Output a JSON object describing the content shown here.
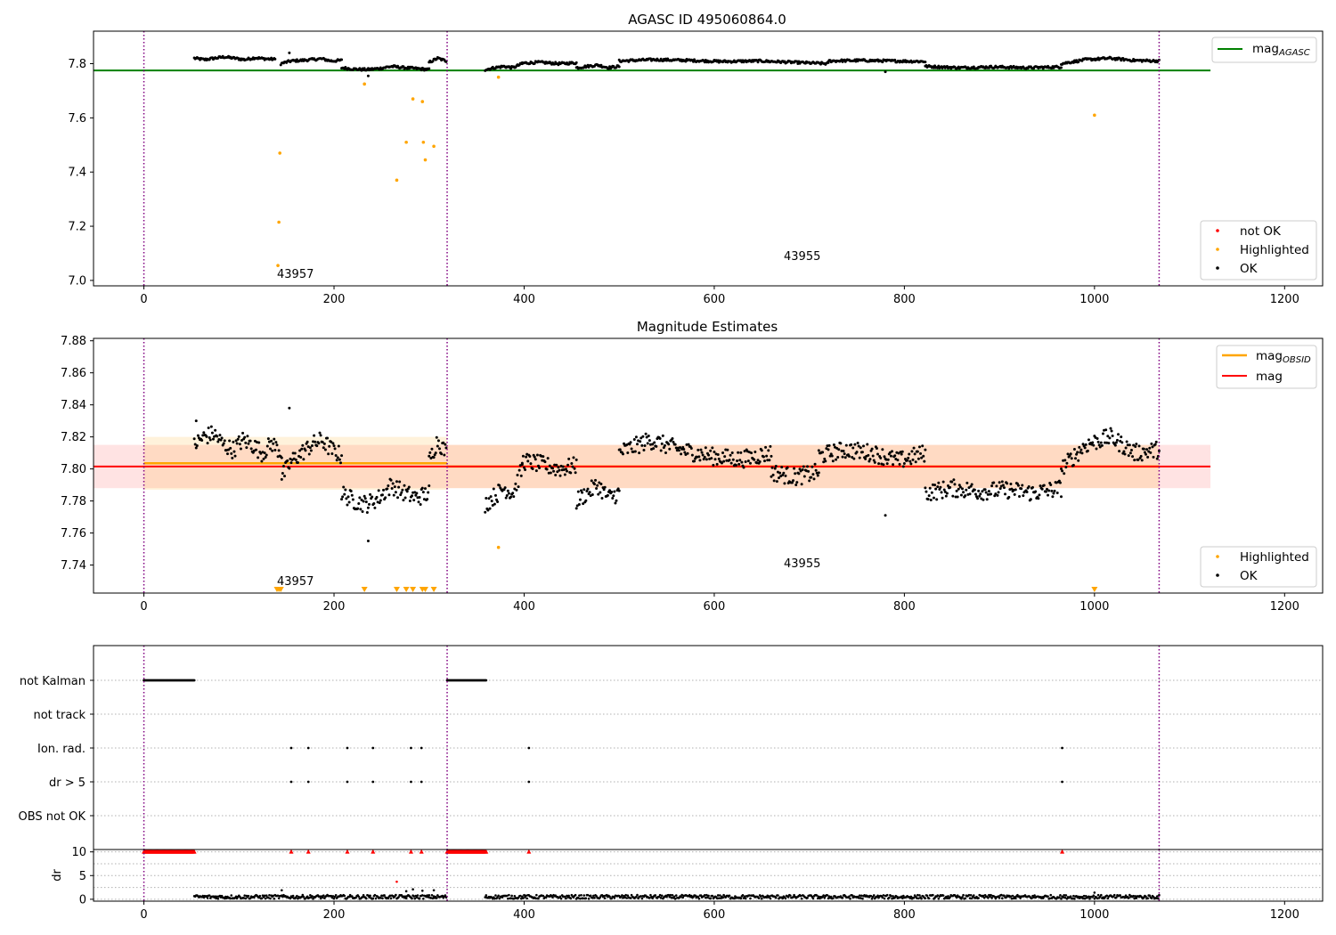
{
  "chart_data": [
    {
      "type": "scatter",
      "title": "AGASC ID 495060864.0",
      "xlim": [
        -53,
        1240
      ],
      "ylim": [
        6.98,
        7.92
      ],
      "xticks": [
        "0",
        "200",
        "400",
        "600",
        "800",
        "1000",
        "1200"
      ],
      "yticks": [
        "7.0",
        "7.2",
        "7.4",
        "7.6",
        "7.8"
      ],
      "reference_line": {
        "label": "mag",
        "subscript": "AGASC",
        "value": 7.775,
        "x_range": [
          -53,
          1122
        ],
        "color": "#008000"
      },
      "obsid_boundaries": [
        0,
        319,
        1068
      ],
      "obsid_labels": [
        {
          "text": "43957",
          "x": 140,
          "y": 7.01
        },
        {
          "text": "43955",
          "x": 672,
          "y": 7.075
        }
      ],
      "legend": {
        "position": "lower-right",
        "entries": [
          "not OK",
          "Highlighted",
          "OK"
        ]
      },
      "colors": {
        "not_ok": "#ff0000",
        "highlighted": "#ffa500",
        "ok": "#000000"
      },
      "series": [
        {
          "name": "Highlighted",
          "points": [
            [
              141,
              7.055
            ],
            [
              142,
              7.215
            ],
            [
              143,
              7.47
            ],
            [
              232,
              7.725
            ],
            [
              266,
              7.37
            ],
            [
              276,
              7.51
            ],
            [
              283,
              7.67
            ],
            [
              293,
              7.66
            ],
            [
              294,
              7.51
            ],
            [
              296,
              7.445
            ],
            [
              305,
              7.495
            ],
            [
              373,
              7.75
            ],
            [
              1000,
              7.61
            ]
          ]
        },
        {
          "name": "OK",
          "segments": [
            {
              "x_start": 53,
              "x_end": 138,
              "levels": [
                7.82,
                7.815,
                7.82,
                7.825,
                7.82,
                7.815,
                7.822,
                7.818,
                7.816
              ]
            },
            {
              "x_start": 144,
              "x_end": 208,
              "levels": [
                7.8,
                7.81,
                7.812,
                7.815,
                7.818,
                7.81,
                7.812
              ]
            },
            {
              "x_start": 208,
              "x_end": 300,
              "levels": [
                7.785,
                7.78,
                7.778,
                7.782,
                7.79,
                7.785,
                7.782,
                7.778
              ]
            },
            {
              "x_start": 300,
              "x_end": 318,
              "levels": [
                7.805,
                7.82,
                7.81
              ]
            },
            {
              "x_start": 359,
              "x_end": 398,
              "levels": [
                7.778,
                7.785,
                7.79,
                7.785,
                7.8
              ]
            },
            {
              "x_start": 398,
              "x_end": 455,
              "levels": [
                7.802,
                7.805,
                7.8,
                7.803
              ]
            },
            {
              "x_start": 455,
              "x_end": 500,
              "levels": [
                7.785,
                7.79,
                7.795,
                7.785,
                7.79
              ]
            },
            {
              "x_start": 500,
              "x_end": 720,
              "levels": [
                7.81,
                7.815,
                7.812,
                7.808,
                7.81,
                7.805,
                7.8
              ]
            },
            {
              "x_start": 720,
              "x_end": 822,
              "levels": [
                7.81,
                7.812,
                7.81,
                7.808
              ]
            },
            {
              "x_start": 822,
              "x_end": 965,
              "levels": [
                7.79,
                7.785,
                7.788,
                7.785,
                7.788
              ]
            },
            {
              "x_start": 965,
              "x_end": 1068,
              "levels": [
                7.8,
                7.815,
                7.82,
                7.812,
                7.81
              ]
            }
          ],
          "outliers": [
            [
              153,
              7.84
            ],
            [
              236,
              7.755
            ],
            [
              780,
              7.77
            ]
          ]
        }
      ]
    },
    {
      "type": "scatter",
      "title": "Magnitude Estimates",
      "xlim": [
        -53,
        1240
      ],
      "ylim": [
        7.7225,
        7.8815
      ],
      "xticks": [
        "0",
        "200",
        "400",
        "600",
        "800",
        "1000",
        "1200"
      ],
      "yticks": [
        "7.74",
        "7.76",
        "7.78",
        "7.80",
        "7.82",
        "7.84",
        "7.86",
        "7.88"
      ],
      "lines": [
        {
          "label": "mag",
          "subscript": "OBSID",
          "color": "#ffa500",
          "segments": [
            {
              "x_range": [
                0,
                319
              ],
              "value": 7.8035,
              "band": [
                7.787,
                7.82
              ]
            },
            {
              "x_range": [
                319,
                1068
              ],
              "value": 7.8015,
              "band": [
                7.788,
                7.815
              ]
            }
          ]
        },
        {
          "label": "mag",
          "subscript": "",
          "color": "#ff0000",
          "value": 7.8015,
          "x_range": [
            -53,
            1122
          ],
          "band": [
            7.788,
            7.815
          ]
        }
      ],
      "obsid_boundaries": [
        0,
        319,
        1068
      ],
      "obsid_labels": [
        {
          "text": "43957",
          "x": 140,
          "y": 7.728
        },
        {
          "text": "43955",
          "x": 672,
          "y": 7.74
        }
      ],
      "legend_top": {
        "position": "upper-right",
        "entries": [
          "mag",
          "mag"
        ]
      },
      "legend": {
        "position": "lower-right",
        "entries": [
          "Highlighted",
          "OK"
        ]
      },
      "series": [
        {
          "name": "Highlighted",
          "points": [
            [
              373,
              7.751
            ]
          ],
          "below_axis_markers": [
            140,
            142,
            144,
            232,
            266,
            276,
            283,
            293,
            296,
            305,
            1000
          ]
        },
        {
          "name": "OK",
          "segments": [
            {
              "x_start": 53,
              "x_end": 145,
              "levels": [
                7.815,
                7.82,
                7.822,
                7.815,
                7.812,
                7.818,
                7.815,
                7.81,
                7.816,
                7.81
              ]
            },
            {
              "x_start": 145,
              "x_end": 208,
              "levels": [
                7.795,
                7.805,
                7.81,
                7.815,
                7.818,
                7.812,
                7.808
              ]
            },
            {
              "x_start": 208,
              "x_end": 300,
              "levels": [
                7.785,
                7.78,
                7.778,
                7.782,
                7.79,
                7.785,
                7.782,
                7.785
              ]
            },
            {
              "x_start": 300,
              "x_end": 318,
              "levels": [
                7.805,
                7.818,
                7.81
              ]
            },
            {
              "x_start": 359,
              "x_end": 398,
              "levels": [
                7.778,
                7.783,
                7.788,
                7.785,
                7.8
              ]
            },
            {
              "x_start": 398,
              "x_end": 455,
              "levels": [
                7.805,
                7.803,
                7.8,
                7.802
              ]
            },
            {
              "x_start": 455,
              "x_end": 500,
              "levels": [
                7.78,
                7.785,
                7.79,
                7.782,
                7.785
              ]
            },
            {
              "x_start": 500,
              "x_end": 660,
              "levels": [
                7.81,
                7.818,
                7.812,
                7.808,
                7.806,
                7.81
              ]
            },
            {
              "x_start": 660,
              "x_end": 710,
              "levels": [
                7.798,
                7.795,
                7.798
              ]
            },
            {
              "x_start": 710,
              "x_end": 822,
              "levels": [
                7.808,
                7.812,
                7.81,
                7.805,
                7.81
              ]
            },
            {
              "x_start": 822,
              "x_end": 965,
              "levels": [
                7.785,
                7.788,
                7.786,
                7.787,
                7.785,
                7.788
              ]
            },
            {
              "x_start": 965,
              "x_end": 1068,
              "levels": [
                7.8,
                7.815,
                7.82,
                7.81,
                7.812
              ]
            }
          ],
          "outliers": [
            [
              55,
              7.83
            ],
            [
              153,
              7.838
            ],
            [
              236,
              7.755
            ],
            [
              780,
              7.771
            ]
          ]
        }
      ]
    },
    {
      "type": "scatter",
      "title": "",
      "xlim": [
        -53,
        1240
      ],
      "categories": [
        "not Kalman",
        "not track",
        "Ion. rad.",
        "dr > 5",
        "OBS not OK"
      ],
      "flag_points": {
        "not Kalman": {
          "ranges": [
            [
              0,
              53
            ],
            [
              319,
              360
            ]
          ]
        },
        "not track": {
          "ranges": []
        },
        "Ion. rad.": {
          "points": [
            155,
            173,
            214,
            241,
            281,
            292,
            405,
            966
          ]
        },
        "dr > 5": {
          "points": [
            155,
            173,
            214,
            241,
            281,
            292,
            405,
            966
          ]
        },
        "OBS not OK": {
          "ranges": []
        }
      },
      "obsid_boundaries": [
        0,
        319,
        1068
      ]
    },
    {
      "type": "scatter",
      "title": "",
      "ylabel": "dr",
      "xlim": [
        -53,
        1240
      ],
      "ylim": [
        -0.4,
        10.5
      ],
      "xticks": [
        "0",
        "200",
        "400",
        "600",
        "800",
        "1000",
        "1200"
      ],
      "yticks": [
        "0",
        "5",
        "10"
      ],
      "capped_markers": {
        "value": 10,
        "color": "#ff0000",
        "ranges": [
          [
            0,
            53
          ],
          [
            319,
            360
          ]
        ],
        "points": [
          155,
          173,
          214,
          241,
          281,
          292,
          405,
          966
        ]
      },
      "ok_segments": [
        [
          53,
          318
        ],
        [
          359,
          1068
        ]
      ],
      "ok_level": 0.5,
      "outliers": [
        [
          145,
          1.9
        ],
        [
          266,
          3.7
        ],
        [
          276,
          1.7
        ],
        [
          283,
          2.1
        ],
        [
          293,
          1.8
        ],
        [
          305,
          1.9
        ],
        [
          1000,
          1.4
        ]
      ],
      "obsid_boundaries": [
        0,
        319,
        1068
      ]
    }
  ]
}
